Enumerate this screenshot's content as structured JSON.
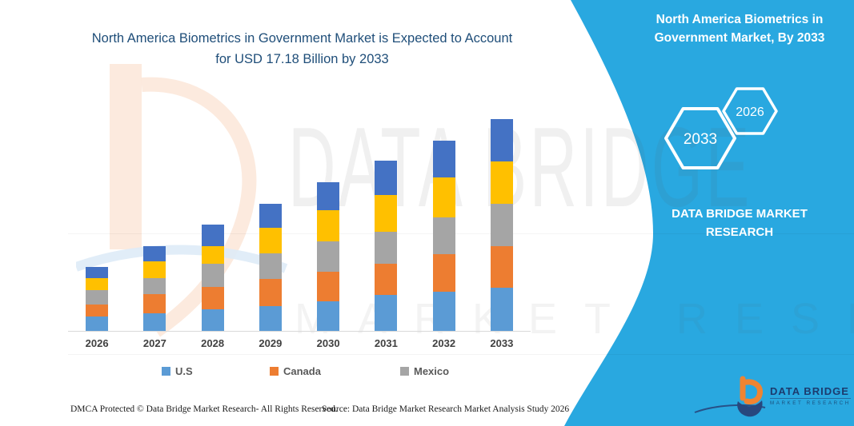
{
  "title": {
    "line1": "North America Biometrics in Government Market is Expected to Account",
    "line2": "for USD 17.18 Billion by 2033"
  },
  "banner": {
    "color": "#29A8E0",
    "title": "North America Biometrics in Government Market, By 2033",
    "hexagons": [
      {
        "label": "2033"
      },
      {
        "label": "2026"
      }
    ],
    "brand": "DATA BRIDGE MARKET RESEARCH"
  },
  "watermark": {
    "line1": "DATA BRIDGE",
    "line2": "MARKET RESEARCH"
  },
  "chart_data": {
    "type": "bar",
    "stacked": true,
    "title": "North America Biometrics in Government Market is Expected to Account for USD 17.18 Billion by 2033",
    "unit": "USD Billion",
    "categories": [
      "2026",
      "2027",
      "2028",
      "2029",
      "2030",
      "2031",
      "2032",
      "2033"
    ],
    "series": [
      {
        "name": "U.S",
        "color": "#5B9BD5",
        "values": [
          1.17,
          1.43,
          1.75,
          2.01,
          2.4,
          2.92,
          3.18,
          3.5
        ]
      },
      {
        "name": "Canada",
        "color": "#ED7D31",
        "values": [
          0.97,
          1.56,
          1.82,
          2.2,
          2.4,
          2.53,
          3.05,
          3.37
        ]
      },
      {
        "name": "Mexico",
        "color": "#A5A5A5",
        "values": [
          1.17,
          1.3,
          1.88,
          2.07,
          2.46,
          2.59,
          2.98,
          3.44
        ]
      },
      {
        "name": "unlabeled-yellow",
        "color": "#FFC000",
        "values": [
          0.97,
          1.36,
          1.43,
          2.07,
          2.53,
          2.98,
          3.24,
          3.44
        ]
      },
      {
        "name": "unlabeled-dark-blue",
        "color": "#4472C4",
        "values": [
          0.91,
          1.23,
          1.75,
          1.94,
          2.27,
          2.79,
          2.98,
          3.43
        ]
      }
    ],
    "totals": [
      5.19,
      6.88,
      8.63,
      10.29,
      12.06,
      13.81,
      15.43,
      17.18
    ],
    "annotation": "USD 17.18 Billion by 2033",
    "ylim": [
      0,
      18
    ],
    "grid": false,
    "legend_position": "bottom"
  },
  "legend": [
    {
      "label": "U.S",
      "color": "#5B9BD5"
    },
    {
      "label": "Canada",
      "color": "#ED7D31"
    },
    {
      "label": "Mexico",
      "color": "#A5A5A5"
    }
  ],
  "footer": {
    "dmca": "DMCA Protected © Data Bridge Market Research-  All Rights Reserved.",
    "source": "Source: Data Bridge Market Research  Market Analysis Study 2026"
  },
  "logo": {
    "name": "DATA BRIDGE",
    "tagline": "MARKET RESEARCH"
  }
}
